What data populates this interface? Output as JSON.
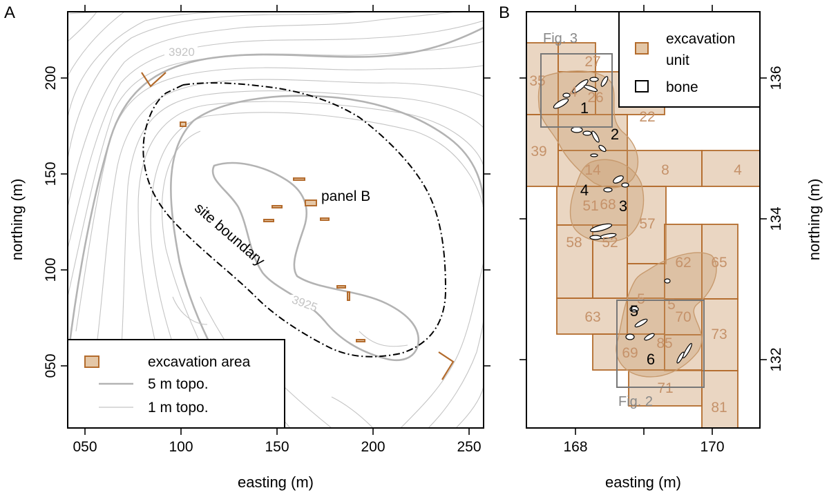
{
  "panelA": {
    "panel_label": "A",
    "x_axis_label": "easting (m)",
    "y_axis_label": "northing (m)",
    "x_ticks": [
      "050",
      "100",
      "150",
      "200",
      "250"
    ],
    "y_ticks": [
      "050",
      "100",
      "150",
      "200"
    ],
    "contour_labels": [
      "3920",
      "3925"
    ],
    "annotations": {
      "site_boundary": "site boundary",
      "panel_b": "panel B"
    },
    "legend": {
      "excavation_area": "excavation area",
      "topo5": "5 m topo.",
      "topo1": "1 m topo."
    }
  },
  "panelB": {
    "panel_label": "B",
    "x_axis_label": "easting (m)",
    "y_axis_label": "northing (m)",
    "x_ticks": [
      "168",
      "170"
    ],
    "y_ticks": [
      "132",
      "134",
      "136"
    ],
    "unit_labels": [
      "27",
      "35",
      "4",
      "26",
      "22",
      "39",
      "14",
      "8",
      "4",
      "51",
      "68",
      "57",
      "58",
      "52",
      "62",
      "65",
      "5",
      "5",
      "63",
      "70",
      "73",
      "69",
      "85",
      "71",
      "81"
    ],
    "cluster_labels": [
      "1",
      "2",
      "3",
      "4",
      "5",
      "6"
    ],
    "figure_boxes": [
      "Fig. 3",
      "Fig. 2"
    ],
    "legend": {
      "excavation_unit": "excavation unit",
      "bone": "bone"
    }
  },
  "colors": {
    "excavation": "#b36b2c",
    "excavation_fill": "#d8b48f",
    "topo_major": "#b3b3b3",
    "topo_minor": "#c4c4c4"
  }
}
